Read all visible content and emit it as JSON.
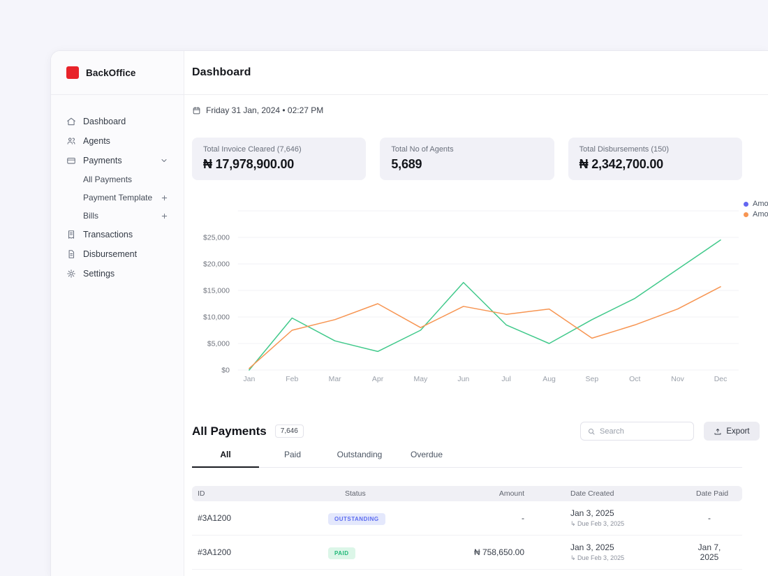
{
  "theme": {
    "accent_red": "#e8232a",
    "badge_outstanding_bg": "#e4e8fc",
    "badge_outstanding_text": "#5c6cf0",
    "badge_paid_bg": "#dcf6e8",
    "badge_paid_text": "#1fb877"
  },
  "brand": {
    "name": "BackOffice"
  },
  "sidebar": {
    "items": [
      {
        "label": "Dashboard"
      },
      {
        "label": "Agents"
      },
      {
        "label": "Payments"
      },
      {
        "label": "All Payments"
      },
      {
        "label": "Payment Template"
      },
      {
        "label": "Bills"
      },
      {
        "label": "Transactions"
      },
      {
        "label": "Disbursement"
      },
      {
        "label": "Settings"
      }
    ]
  },
  "header": {
    "title": "Dashboard",
    "datetime": "Friday 31 Jan, 2024 • 02:27 PM"
  },
  "stats": [
    {
      "label": "Total Invoice Cleared (7,646)",
      "value": "₦ 17,978,900.00"
    },
    {
      "label": "Total No of Agents",
      "value": "5,689"
    },
    {
      "label": "Total Disbursements (150)",
      "value": "₦ 2,342,700.00"
    }
  ],
  "chart_data": {
    "type": "line",
    "x": [
      "Jan",
      "Feb",
      "Mar",
      "Apr",
      "May",
      "Jun",
      "Jul",
      "Aug",
      "Sep",
      "Oct",
      "Nov",
      "Dec"
    ],
    "series": [
      {
        "name": "Amo",
        "color": "#41c98b",
        "values": [
          0,
          9800,
          5500,
          3500,
          7500,
          16500,
          8500,
          5000,
          9500,
          13500,
          19000,
          24500
        ]
      },
      {
        "name": "Amo",
        "color": "#f79552",
        "values": [
          300,
          7500,
          9500,
          12500,
          8000,
          12000,
          10500,
          11500,
          6000,
          8500,
          11500,
          15700
        ]
      }
    ],
    "legend": [
      {
        "label": "Amo",
        "color": "#6366f1"
      },
      {
        "label": "Amo",
        "color": "#f79552"
      }
    ],
    "legend_position": "top-right",
    "grid": true,
    "ylim": [
      0,
      30000
    ],
    "yticks": [
      {
        "value": 0,
        "label": "$0"
      },
      {
        "value": 5000,
        "label": "$5,000"
      },
      {
        "value": 10000,
        "label": "$10,000"
      },
      {
        "value": 15000,
        "label": "$15,000"
      },
      {
        "value": 20000,
        "label": "$20,000"
      },
      {
        "value": 25000,
        "label": "$25,000"
      },
      {
        "value": 30000,
        "label": ""
      }
    ]
  },
  "payments": {
    "title": "All Payments",
    "count": "7,646",
    "search_placeholder": "Search",
    "export_label": "Export",
    "tabs": [
      {
        "label": "All",
        "active": true
      },
      {
        "label": "Paid",
        "active": false
      },
      {
        "label": "Outstanding",
        "active": false
      },
      {
        "label": "Overdue",
        "active": false
      }
    ],
    "table": {
      "headers": [
        "ID",
        "Status",
        "Amount",
        "Date Created",
        "Date Paid"
      ],
      "rows": [
        {
          "id": "#3A1200",
          "status": "OUTSTANDING",
          "status_type": "outstanding",
          "amount": "-",
          "date_created": "Jan 3, 2025",
          "due": "↳ Due Feb 3, 2025",
          "date_paid": "-"
        },
        {
          "id": "#3A1200",
          "status": "PAID",
          "status_type": "paid",
          "amount": "₦ 758,650.00",
          "date_created": "Jan 3, 2025",
          "due": "↳ Due Feb 3, 2025",
          "date_paid": "Jan 7, 2025"
        }
      ]
    }
  }
}
